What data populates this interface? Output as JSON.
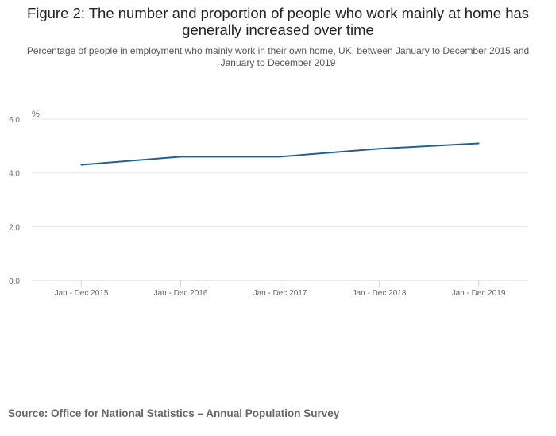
{
  "title": "Figure 2: The number and proportion of people who work mainly at home has generally increased over time",
  "subtitle": "Percentage of people in employment who mainly work in their own home, UK, between January to December 2015 and January to December 2019",
  "source": "Source: Office for National Statistics – Annual Population Survey",
  "chart_data": {
    "type": "line",
    "title": "Figure 2: The number and proportion of people who work mainly at home has generally increased over time",
    "subtitle": "Percentage of people in employment who mainly work in their own home, UK, between January to December 2015 and January to December 2019",
    "ylabel": "%",
    "xlabel": "",
    "categories": [
      "Jan - Dec 2015",
      "Jan - Dec 2016",
      "Jan - Dec 2017",
      "Jan - Dec 2018",
      "Jan - Dec 2019"
    ],
    "series": [
      {
        "values": [
          4.3,
          4.6,
          4.6,
          4.9,
          5.1
        ],
        "color": "#206095"
      }
    ],
    "yticks": [
      "0.0",
      "2.0",
      "4.0",
      "6.0"
    ],
    "ytick_values": [
      0,
      2,
      4,
      6
    ],
    "ylim": [
      0,
      6
    ],
    "grid": true,
    "legend": "none"
  }
}
